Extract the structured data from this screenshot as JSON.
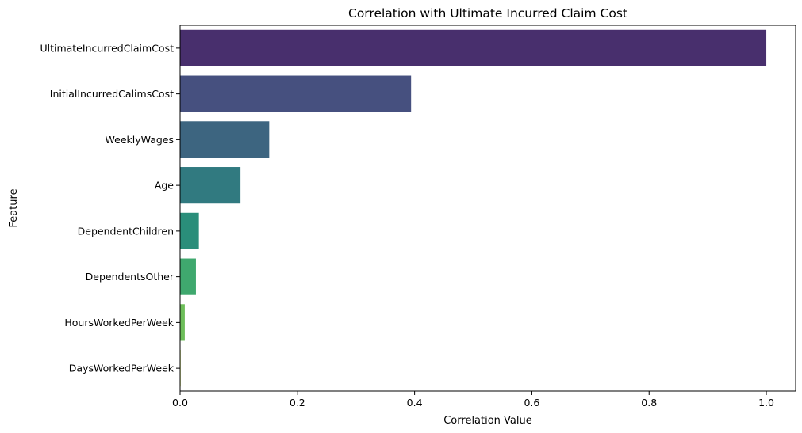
{
  "chart_data": {
    "type": "bar",
    "orientation": "horizontal",
    "title": "Correlation with Ultimate Incurred Claim Cost",
    "xlabel": "Correlation Value",
    "ylabel": "Feature",
    "xlim": [
      0,
      1.05
    ],
    "xticks": [
      "0.0",
      "0.2",
      "0.4",
      "0.6",
      "0.8",
      "1.0"
    ],
    "categories": [
      "UltimateIncurredClaimCost",
      "InitialIncurredCalimsCost",
      "WeeklyWages",
      "Age",
      "DependentChildren",
      "DependentsOther",
      "HoursWorkedPerWeek",
      "DaysWorkedPerWeek"
    ],
    "values": [
      1.0,
      0.394,
      0.152,
      0.103,
      0.032,
      0.027,
      0.008,
      0.001
    ],
    "colors": [
      "#482f6d",
      "#46507f",
      "#3d6580",
      "#317a80",
      "#2a8e7a",
      "#3fa86e",
      "#6dbe5a",
      "#bfd64a"
    ],
    "grid": false,
    "legend": "none"
  }
}
